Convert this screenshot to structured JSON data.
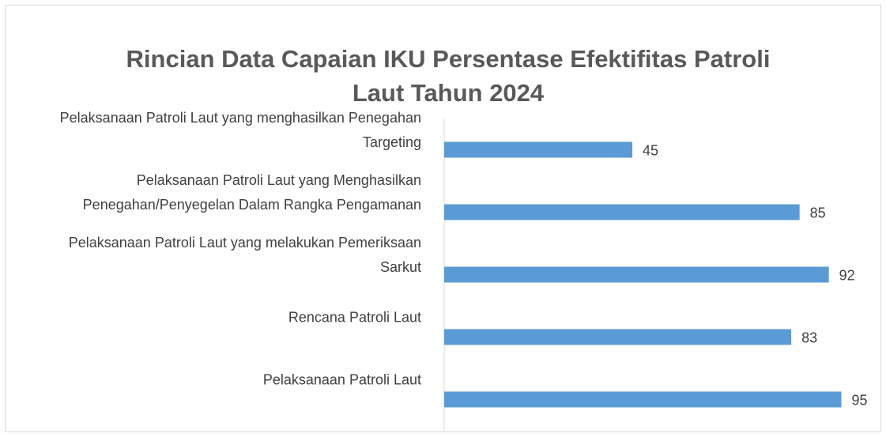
{
  "chart_data": {
    "type": "bar",
    "orientation": "horizontal",
    "title": "Rincian Data Capaian IKU Persentase Efektifitas Patroli Laut Tahun 2024",
    "categories": [
      "Pelaksanaan Patroli Laut yang menghasilkan Penegahan Targeting",
      "Pelaksanaan Patroli Laut yang Menghasilkan Penegahan/Penyegelan Dalam Rangka Pengamanan",
      "Pelaksanaan Patroli Laut yang melakukan Pemeriksaan Sarkut",
      "Rencana Patroli Laut",
      "Pelaksanaan Patroli Laut"
    ],
    "values": [
      45,
      85,
      92,
      83,
      95
    ],
    "color": "#5b9bd5",
    "xlim": [
      0,
      100
    ]
  }
}
